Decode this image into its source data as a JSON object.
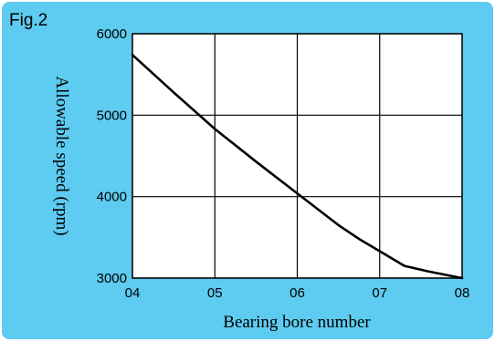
{
  "figure": {
    "label": "Fig.2",
    "background": "#5ecbf0"
  },
  "chart_data": {
    "type": "line",
    "title": "",
    "xlabel": "Bearing bore number",
    "ylabel": "Allowable speed (rpm)",
    "x_categories": [
      "04",
      "05",
      "06",
      "07",
      "08"
    ],
    "xlim": [
      0,
      4
    ],
    "ylim": [
      3000,
      6000
    ],
    "yticks": [
      6000,
      5000,
      4000,
      3000
    ],
    "grid": true,
    "legend": "none",
    "series": [
      {
        "line_color": "#000000",
        "points": [
          {
            "x": 0.0,
            "y": 5740
          },
          {
            "x": 0.5,
            "y": 5280
          },
          {
            "x": 1.0,
            "y": 4830
          },
          {
            "x": 1.5,
            "y": 4430
          },
          {
            "x": 2.0,
            "y": 4040
          },
          {
            "x": 2.5,
            "y": 3650
          },
          {
            "x": 2.75,
            "y": 3480
          },
          {
            "x": 3.0,
            "y": 3330
          },
          {
            "x": 3.3,
            "y": 3150
          },
          {
            "x": 3.6,
            "y": 3080
          },
          {
            "x": 4.0,
            "y": 3000
          }
        ]
      }
    ]
  }
}
